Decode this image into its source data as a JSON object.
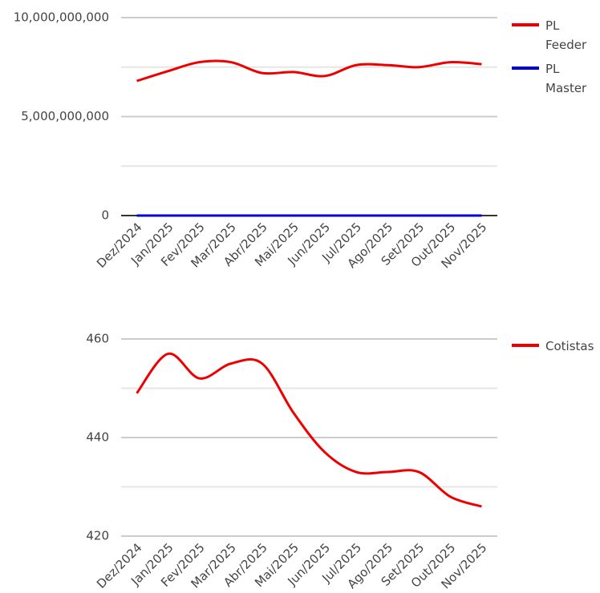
{
  "chart_data": [
    {
      "type": "line",
      "categories": [
        "Dez/2024",
        "Jan/2025",
        "Fev/2025",
        "Mar/2025",
        "Abr/2025",
        "Mai/2025",
        "Jun/2025",
        "Jul/2025",
        "Ago/2025",
        "Set/2025",
        "Out/2025",
        "Nov/2025"
      ],
      "series": [
        {
          "name": "PL Feeder",
          "color": "#ee0000",
          "values": [
            6800000000,
            7300000000,
            7750000000,
            7750000000,
            7200000000,
            7250000000,
            7050000000,
            7600000000,
            7600000000,
            7500000000,
            7750000000,
            7650000000
          ]
        },
        {
          "name": "PL Master",
          "color": "#0000dd",
          "values": [
            0,
            0,
            0,
            0,
            0,
            0,
            0,
            0,
            0,
            0,
            0,
            0
          ]
        }
      ],
      "ylim": [
        0,
        10000000000
      ],
      "yticks": [
        {
          "value": 0,
          "label": "0"
        },
        {
          "value": 5000000000,
          "label": "5,000,000,000"
        },
        {
          "value": 10000000000,
          "label": "10,000,000,000"
        }
      ],
      "minor_yticks": [
        2500000000,
        7500000000
      ],
      "grid": true,
      "legend": "right"
    },
    {
      "type": "line",
      "categories": [
        "Dez/2024",
        "Jan/2025",
        "Fev/2025",
        "Mar/2025",
        "Abr/2025",
        "Mai/2025",
        "Jun/2025",
        "Jul/2025",
        "Ago/2025",
        "Set/2025",
        "Out/2025",
        "Nov/2025"
      ],
      "series": [
        {
          "name": "Cotistas",
          "color": "#ee0000",
          "values": [
            449,
            457,
            452,
            455,
            455,
            445,
            437,
            433,
            433,
            433,
            428,
            426
          ]
        }
      ],
      "ylim": [
        420,
        460
      ],
      "yticks": [
        420,
        440,
        460
      ],
      "minor_yticks": [
        430,
        450
      ],
      "grid": true,
      "legend": "right"
    }
  ]
}
